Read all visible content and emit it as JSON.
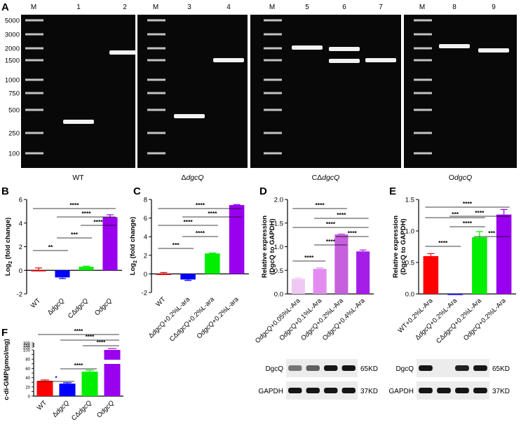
{
  "panels": {
    "A": "A",
    "B": "B",
    "C": "C",
    "D": "D",
    "E": "E",
    "F": "F"
  },
  "gel": {
    "marker_label": "M",
    "ladder_sizes": [
      "5000",
      "3000",
      "2000",
      "1500",
      "1000",
      "750",
      "500",
      "250",
      "100"
    ],
    "sections": [
      {
        "caption": "WT",
        "lanes": [
          "M",
          "1",
          "2"
        ]
      },
      {
        "caption": "ΔdgcQ",
        "lanes": [
          "M",
          "3",
          "4"
        ]
      },
      {
        "caption": "CΔdgcQ",
        "lanes": [
          "M",
          "5",
          "6",
          "7"
        ]
      },
      {
        "caption": "OdgcQ",
        "lanes": [
          "M",
          "8",
          "9"
        ]
      }
    ]
  },
  "blot": {
    "rows": [
      "DgcQ",
      "GAPDH"
    ],
    "sizes": [
      "65KD",
      "37KD"
    ]
  },
  "chart_data": [
    {
      "panel": "B",
      "type": "bar",
      "ylabel": "Log2 (fold change)",
      "categories": [
        "WT",
        "ΔdgcQ",
        "CΔdgcQ",
        "OdgcQ"
      ],
      "values": [
        0.0,
        -0.6,
        0.3,
        4.5
      ],
      "errors": [
        0.2,
        0.1,
        0.05,
        0.2
      ],
      "colors": [
        "#ff0000",
        "#0000ff",
        "#00ee00",
        "#9900ee"
      ],
      "ylim": [
        -2,
        6
      ],
      "yticks": [
        "-2",
        "0",
        "2",
        "4",
        "6"
      ],
      "significance": [
        "**",
        "***",
        "****",
        "****",
        "****"
      ]
    },
    {
      "panel": "C",
      "type": "bar",
      "ylabel": "Log2 (fold change)",
      "categories": [
        "WT",
        "ΔdgcQ+0.2%L-ara",
        "CΔdgcQ+0.2%L-ara",
        "OdgcQ+0.2%L-ara"
      ],
      "values": [
        0.0,
        -0.6,
        2.2,
        7.4
      ],
      "errors": [
        0.15,
        0.1,
        0.05,
        0.05
      ],
      "colors": [
        "#ff0000",
        "#0000ff",
        "#00ee00",
        "#9900ee"
      ],
      "ylim": [
        -2,
        8
      ],
      "yticks": [
        "-2",
        "0",
        "2",
        "4",
        "6",
        "8"
      ],
      "significance": [
        "***",
        "****",
        "****",
        "****",
        "****"
      ]
    },
    {
      "panel": "D",
      "type": "bar",
      "ylabel": "Relative expression (DgcQ to GAPDH)",
      "categories": [
        "OdgcQ+0.05%L-Ara",
        "OdgcQ+0.1%L-Ara",
        "OdgcQ+0.2%L-Ara",
        "OdgcQ+0.4%L-Ara"
      ],
      "values": [
        0.32,
        0.53,
        1.26,
        0.9
      ],
      "errors": [
        0.02,
        0.02,
        0.01,
        0.03
      ],
      "colors": [
        "#f0c8f4",
        "#e28cf0",
        "#c660dd",
        "#a41ee8"
      ],
      "ylim": [
        0,
        2.0
      ],
      "yticks": [
        "0.0",
        "0.5",
        "1.0",
        "1.5",
        "2.0"
      ],
      "significance": [
        "****",
        "****",
        "****",
        "****",
        "****",
        "****"
      ]
    },
    {
      "panel": "E",
      "type": "bar",
      "ylabel": "Relative expression (DgcQ to GAPDH)",
      "categories": [
        "WT+0.2%L-Ara",
        "ΔdgcQ+0.2%L-Ara",
        "CΔdgcQ+0.2%L-Ara",
        "OdgcQ+0.2%L-Ara"
      ],
      "values": [
        0.6,
        0.0,
        0.9,
        1.26
      ],
      "errors": [
        0.04,
        0.0,
        0.09,
        0.08
      ],
      "colors": [
        "#ff0000",
        "#0000ff",
        "#00ee00",
        "#9900ee"
      ],
      "ylim": [
        0,
        1.5
      ],
      "yticks": [
        "0.0",
        "0.5",
        "1.0",
        "1.5"
      ],
      "significance": [
        "****",
        "***",
        "****",
        "****",
        "****",
        "***"
      ]
    },
    {
      "panel": "F",
      "type": "bar",
      "ylabel": "c-di-GMP(pmol/mg)",
      "categories": [
        "WT",
        "ΔdgcQ",
        "CΔdgcQ",
        "OdgcQ"
      ],
      "values": [
        33,
        27,
        53,
        270
      ],
      "errors": [
        2,
        2,
        3,
        14
      ],
      "colors": [
        "#ff0000",
        "#0000ff",
        "#00ee00",
        "#9900ee"
      ],
      "yticks": [
        "0",
        "10",
        "20",
        "30",
        "40",
        "50",
        "60",
        "70",
        "80",
        "90",
        "100",
        "200",
        "250",
        "300"
      ],
      "axis_break": [
        100,
        200
      ],
      "significance": [
        "*",
        "****",
        "****",
        "****",
        "****"
      ]
    }
  ]
}
